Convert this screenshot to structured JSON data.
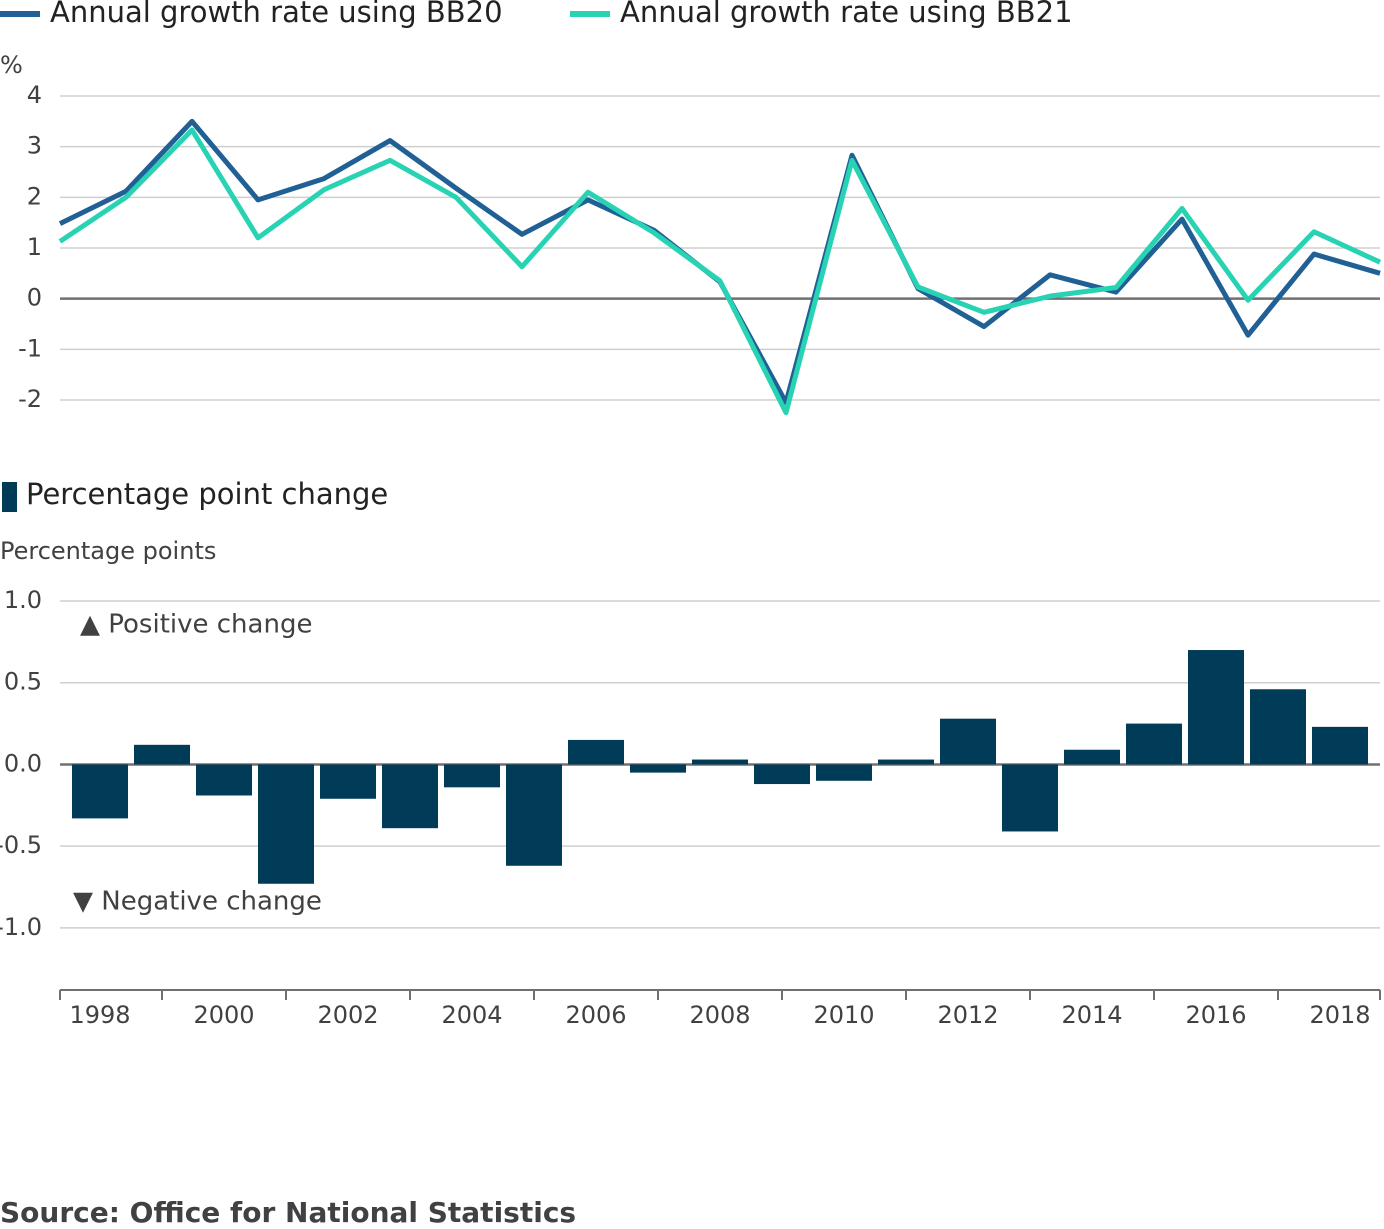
{
  "chart_data": [
    {
      "type": "line",
      "y_label": "%",
      "x": [
        1998,
        1999,
        2000,
        2001,
        2002,
        2003,
        2004,
        2005,
        2006,
        2007,
        2008,
        2009,
        2010,
        2011,
        2012,
        2013,
        2014,
        2015,
        2016,
        2017,
        2018
      ],
      "xlim": [
        1998,
        2018
      ],
      "series": [
        {
          "name": "Annual growth rate using BB20",
          "color": "#206095",
          "values": [
            1.48,
            2.12,
            3.5,
            1.95,
            2.37,
            3.12,
            2.18,
            1.27,
            1.95,
            1.35,
            0.33,
            -2.05,
            2.83,
            0.2,
            -0.55,
            0.47,
            0.13,
            1.57,
            -0.72,
            0.88,
            0.5
          ]
        },
        {
          "name": "Annual growth rate using BB21",
          "color": "#27d3b3",
          "values": [
            1.13,
            2.0,
            3.33,
            1.2,
            2.15,
            2.73,
            2.0,
            0.63,
            2.1,
            1.3,
            0.35,
            -2.25,
            2.73,
            0.23,
            -0.27,
            0.05,
            0.22,
            1.78,
            -0.03,
            1.32,
            0.72
          ]
        }
      ],
      "ylim": [
        -2,
        4
      ],
      "yticks": [
        4,
        3,
        2,
        1,
        0,
        -1,
        -2
      ],
      "grid": true
    },
    {
      "type": "bar",
      "y_label": "Percentage points",
      "categories": [
        "1998",
        null,
        "2000",
        null,
        "2002",
        null,
        "2004",
        null,
        "2006",
        null,
        "2008",
        null,
        "2010",
        null,
        "2012",
        null,
        "2014",
        null,
        "2016",
        null,
        "2018"
      ],
      "series": [
        {
          "name": "Percentage point change",
          "color": "#003c57",
          "values": [
            -0.33,
            0.12,
            -0.19,
            -0.73,
            -0.21,
            -0.39,
            -0.14,
            -0.62,
            0.15,
            -0.05,
            0.03,
            -0.12,
            -0.1,
            0.03,
            0.28,
            -0.41,
            0.09,
            0.25,
            0.7,
            0.46,
            0.23
          ]
        }
      ],
      "annotations": [
        "▲ Positive change",
        "▼ Negative change"
      ],
      "ylim": [
        -1.38,
        1.0
      ],
      "yticks": [
        {
          "value": 1.0,
          "label": "1.0"
        },
        {
          "value": 0.5,
          "label": "0.5"
        },
        {
          "value": 0,
          "label": "0.0"
        },
        {
          "value": -0.5,
          "label": "-0.5"
        },
        {
          "value": -1.0,
          "label": "-1.0"
        }
      ],
      "grid": true
    }
  ],
  "source": "Source: Office for National Statistics"
}
